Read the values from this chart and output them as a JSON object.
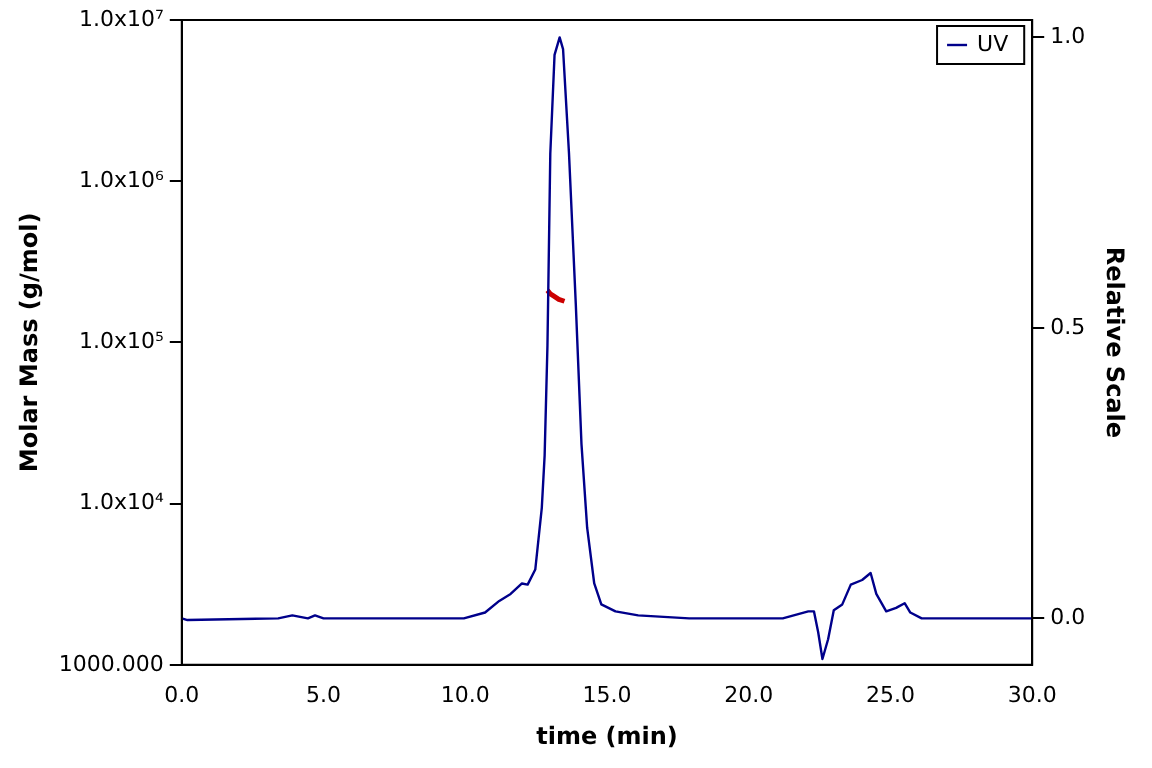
{
  "chart_data": {
    "type": "line",
    "xlabel": "time (min)",
    "ylabel": "Molar Mass (g/mol)",
    "y2label": "Relative Scale",
    "xlim": [
      0,
      30
    ],
    "xticks": [
      {
        "value": 0,
        "label": "0.0"
      },
      {
        "value": 5,
        "label": "5.0"
      },
      {
        "value": 10,
        "label": "10.0"
      },
      {
        "value": 15,
        "label": "15.0"
      },
      {
        "value": 20,
        "label": "20.0"
      },
      {
        "value": 25,
        "label": "25.0"
      },
      {
        "value": 30,
        "label": "30.0"
      }
    ],
    "log": "y",
    "ylim": [
      1000,
      10000000
    ],
    "yticks": [
      {
        "value": 1000,
        "label": "1000.000"
      },
      {
        "value": 10000,
        "label": "1.0x10⁴"
      },
      {
        "value": 100000,
        "label": "1.0x10⁵"
      },
      {
        "value": 1000000,
        "label": "1.0x10⁶"
      },
      {
        "value": 10000000,
        "label": "1.0x10⁷"
      }
    ],
    "y2lim": [
      -0.08,
      1.03
    ],
    "y2ticks": [
      {
        "value": 0,
        "label": "0.0"
      },
      {
        "value": 0.5,
        "label": "0.5"
      },
      {
        "value": 1,
        "label": "1.0"
      }
    ],
    "grid": false,
    "legend": "top right",
    "marker": "none",
    "line_style": "solid",
    "series": [
      {
        "name": "UV",
        "color": "#00008b",
        "axis": "y2",
        "x": [
          0,
          0.2,
          3.4,
          3.9,
          4.45,
          4.7,
          5.0,
          9.95,
          10.7,
          11.2,
          11.6,
          12.0,
          12.2,
          12.47,
          12.7,
          12.8,
          12.9,
          13.0,
          13.15,
          13.33,
          13.45,
          13.66,
          13.9,
          14.1,
          14.3,
          14.55,
          14.8,
          15.3,
          16.1,
          17.9,
          21.2,
          22.1,
          22.3,
          22.45,
          22.6,
          22.8,
          23.0,
          23.3,
          23.6,
          24.0,
          24.3,
          24.5,
          24.85,
          25.2,
          25.5,
          25.7,
          26.1,
          30.0
        ],
        "values": [
          0.0,
          -0.003,
          0.0,
          0.005,
          0.0,
          0.005,
          0.0,
          0.0,
          0.01,
          0.03,
          0.042,
          0.06,
          0.058,
          0.084,
          0.19,
          0.28,
          0.47,
          0.8,
          0.97,
          1.0,
          0.98,
          0.8,
          0.54,
          0.3,
          0.156,
          0.06,
          0.024,
          0.012,
          0.005,
          0.0,
          0.0,
          0.012,
          0.012,
          -0.024,
          -0.07,
          -0.036,
          0.014,
          0.024,
          0.058,
          0.066,
          0.078,
          0.042,
          0.012,
          0.018,
          0.026,
          0.01,
          0.0,
          0.0
        ]
      },
      {
        "color": "#cc0000",
        "axis": "y",
        "x": [
          12.9,
          13.0,
          13.1,
          13.3,
          13.5
        ],
        "values": [
          210000,
          200000,
          195000,
          185000,
          180000
        ]
      }
    ]
  }
}
